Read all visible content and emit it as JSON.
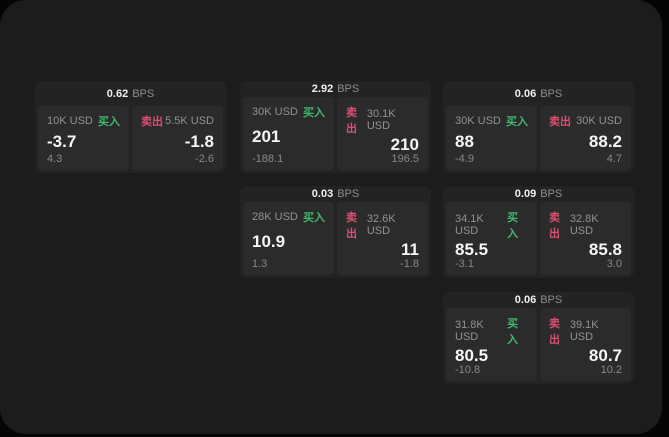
{
  "colors": {
    "buy": "#40b86e",
    "sell": "#d94f6f",
    "window_bg": "#1c1c1c",
    "card_bg": "#232323",
    "panel_bg": "#2b2b2b"
  },
  "labels": {
    "bps_unit": "BPS",
    "buy": "买入",
    "sell": "卖出"
  },
  "cards": [
    {
      "row": 1,
      "col": 1,
      "bps_value": "0.62",
      "bps_unit": "BPS",
      "buy": {
        "size": "10K USD",
        "side": "买入",
        "value": "-3.7",
        "sub": "4.3"
      },
      "sell": {
        "side": "卖出",
        "size": "5.5K USD",
        "value": "-1.8",
        "sub": "-2.6"
      }
    },
    {
      "row": 1,
      "col": 2,
      "bps_value": "2.92",
      "bps_unit": "BPS",
      "buy": {
        "size": "30K USD",
        "side": "买入",
        "value": "201",
        "sub": "-188.1"
      },
      "sell": {
        "side": "卖出",
        "size": "30.1K USD",
        "value": "210",
        "sub": "196.5"
      }
    },
    {
      "row": 1,
      "col": 3,
      "bps_value": "0.06",
      "bps_unit": "BPS",
      "buy": {
        "size": "30K USD",
        "side": "买入",
        "value": "88",
        "sub": "-4.9"
      },
      "sell": {
        "side": "卖出",
        "size": "30K USD",
        "value": "88.2",
        "sub": "4.7"
      }
    },
    {
      "row": 2,
      "col": 2,
      "bps_value": "0.03",
      "bps_unit": "BPS",
      "buy": {
        "size": "28K USD",
        "side": "买入",
        "value": "10.9",
        "sub": "1.3"
      },
      "sell": {
        "side": "卖出",
        "size": "32.6K USD",
        "value": "11",
        "sub": "-1.8"
      }
    },
    {
      "row": 2,
      "col": 3,
      "bps_value": "0.09",
      "bps_unit": "BPS",
      "buy": {
        "size": "34.1K USD",
        "side": "买入",
        "value": "85.5",
        "sub": "-3.1"
      },
      "sell": {
        "side": "卖出",
        "size": "32.8K USD",
        "value": "85.8",
        "sub": "3.0"
      }
    },
    {
      "row": 3,
      "col": 3,
      "bps_value": "0.06",
      "bps_unit": "BPS",
      "buy": {
        "size": "31.8K USD",
        "side": "买入",
        "value": "80.5",
        "sub": "-10.8"
      },
      "sell": {
        "side": "卖出",
        "size": "39.1K USD",
        "value": "80.7",
        "sub": "10.2"
      }
    }
  ]
}
